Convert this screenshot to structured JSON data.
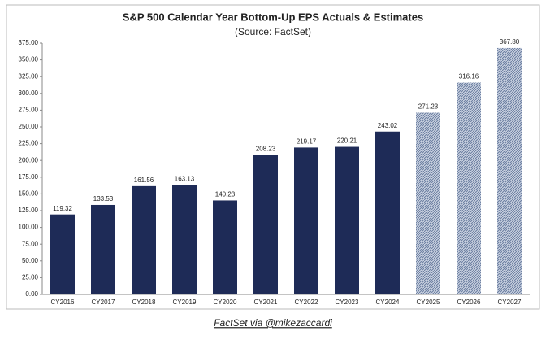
{
  "chart_data": {
    "type": "bar",
    "title": "S&P 500 Calendar Year Bottom-Up EPS Actuals & Estimates",
    "subtitle": "(Source: FactSet)",
    "categories": [
      "CY2016",
      "CY2017",
      "CY2018",
      "CY2019",
      "CY2020",
      "CY2021",
      "CY2022",
      "CY2023",
      "CY2024",
      "CY2025",
      "CY2026",
      "CY2027"
    ],
    "values": [
      119.32,
      133.53,
      161.56,
      163.13,
      140.23,
      208.23,
      219.17,
      220.21,
      243.02,
      271.23,
      316.16,
      367.8
    ],
    "value_labels": [
      "119.32",
      "133.53",
      "161.56",
      "163.13",
      "140.23",
      "208.23",
      "219.17",
      "220.21",
      "243.02",
      "271.23",
      "316.16",
      "367.80"
    ],
    "colors": [
      "#1e2b57",
      "#1e2b57",
      "#1e2b57",
      "#1e2b57",
      "#1e2b57",
      "#1e2b57",
      "#1e2b57",
      "#1e2b57",
      "#1e2b57",
      "#8796b4",
      "#8796b4",
      "#8796b4"
    ],
    "hatched": [
      false,
      false,
      false,
      false,
      false,
      false,
      false,
      false,
      false,
      true,
      true,
      true
    ],
    "ylim": [
      0,
      375
    ],
    "yticks": [
      {
        "value": 0,
        "label": "0.00"
      },
      {
        "value": 25,
        "label": "25.00"
      },
      {
        "value": 50,
        "label": "50.00"
      },
      {
        "value": 75,
        "label": "75.00"
      },
      {
        "value": 100,
        "label": "100.00"
      },
      {
        "value": 125,
        "label": "125.00"
      },
      {
        "value": 150,
        "label": "150.00"
      },
      {
        "value": 175,
        "label": "175.00"
      },
      {
        "value": 200,
        "label": "200.00"
      },
      {
        "value": 225,
        "label": "225.00"
      },
      {
        "value": 250,
        "label": "250.00"
      },
      {
        "value": 275,
        "label": "275.00"
      },
      {
        "value": 300,
        "label": "300.00"
      },
      {
        "value": 325,
        "label": "325.00"
      },
      {
        "value": 350,
        "label": "350.00"
      },
      {
        "value": 375,
        "label": "375.00"
      }
    ],
    "grid": false
  },
  "caption": "FactSet via @mikezaccardi"
}
